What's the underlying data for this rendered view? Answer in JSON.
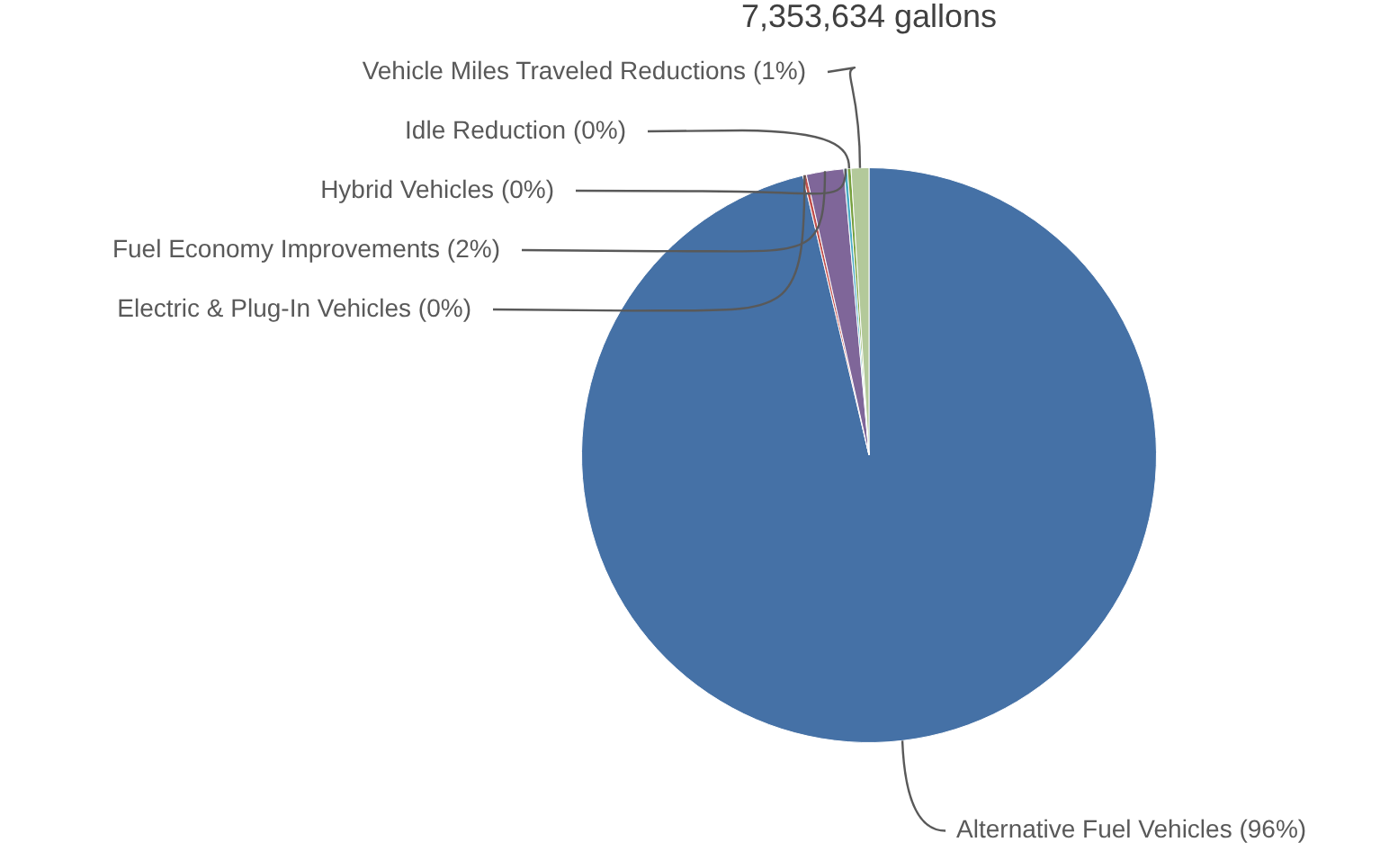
{
  "chart_data": {
    "type": "pie",
    "title": "7,353,634 gallons",
    "categories": [
      "Alternative Fuel Vehicles",
      "Electric & Plug-In Vehicles",
      "Fuel Economy Improvements",
      "Hybrid Vehicles",
      "Idle Reduction",
      "Vehicle Miles Traveled Reductions"
    ],
    "values": [
      96.3,
      0.2,
      2.1,
      0.2,
      0.2,
      1.0
    ],
    "value_labels": [
      "(96%)",
      "(0%)",
      "(2%)",
      "(0%)",
      "(0%)",
      "(1%)"
    ],
    "colors": [
      "#4571a6",
      "#c0504d",
      "#7f6699",
      "#4bacc6",
      "#77a03e",
      "#b3c99a"
    ],
    "legend": false
  }
}
